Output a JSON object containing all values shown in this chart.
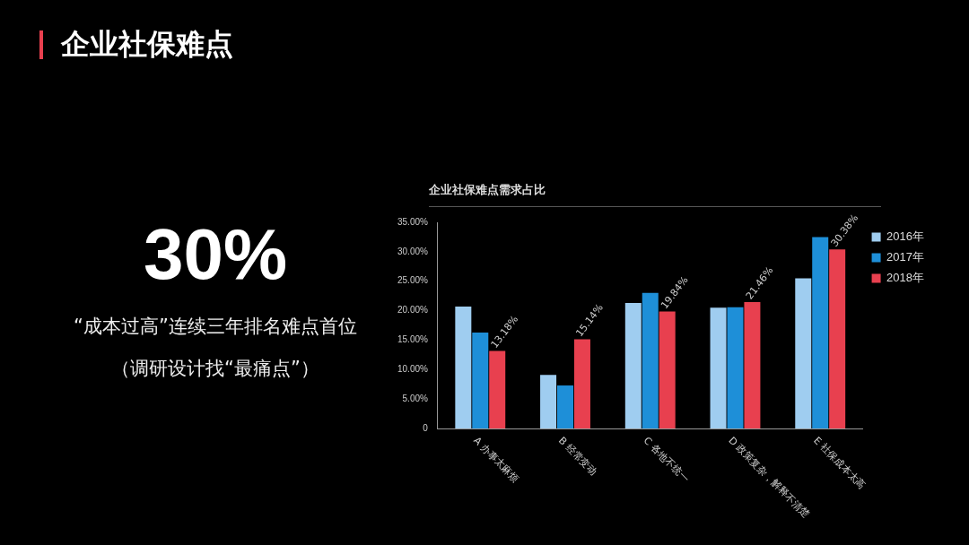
{
  "chart_data": {
    "type": "bar",
    "title": "企业社保难点",
    "subtitle": "企业社保难点需求占比",
    "annotations": [
      "30%",
      "“成本过高”连续三年排名难点首位",
      "（调研设计找“最痛点”）"
    ],
    "categories": [
      "A 办事太麻烦",
      "B 经常变动",
      "C 各地不统一",
      "D 政策复杂，解释不清楚",
      "E 社保成本太高"
    ],
    "series": [
      {
        "name": "2016年",
        "color": "#9fcdf0",
        "values": [
          20.7,
          9.1,
          21.3,
          20.5,
          25.5
        ]
      },
      {
        "name": "2017年",
        "color": "#1e8fd8",
        "values": [
          16.3,
          7.3,
          23.0,
          20.6,
          32.5
        ]
      },
      {
        "name": "2018年",
        "color": "#e8404f",
        "values": [
          13.18,
          15.14,
          19.84,
          21.46,
          30.38
        ],
        "value_labels": [
          "13.18%",
          "15.14%",
          "19.84%",
          "21.46%",
          "30.38%"
        ]
      }
    ],
    "ylim": [
      0,
      35
    ],
    "yticks": [
      {
        "value": 0,
        "label": "0"
      },
      {
        "value": 5,
        "label": "5.00%"
      },
      {
        "value": 10,
        "label": "10.00%"
      },
      {
        "value": 15,
        "label": "15.00%"
      },
      {
        "value": 20,
        "label": "20.00%"
      },
      {
        "value": 25,
        "label": "25.00%"
      },
      {
        "value": 30,
        "label": "30.00%"
      },
      {
        "value": 35,
        "label": "35.00%"
      }
    ],
    "grid": false,
    "legend": "top right"
  }
}
